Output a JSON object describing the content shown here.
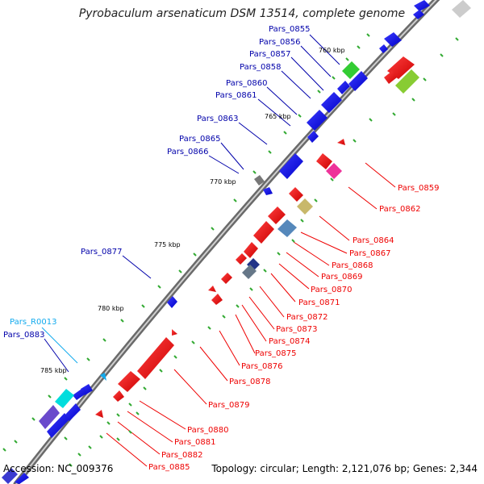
{
  "title": "Pyrobaculum arsenaticum DSM 13514, complete genome",
  "footer": {
    "accession": "Accession: NC_009376",
    "topology": "Topology: circular; Length: 2,121,076 bp; Genes: 2,344"
  },
  "colors": {
    "backbone": "#777777",
    "forward_label": "#0000aa",
    "reverse_label": "#ee0000",
    "rna_label": "#11aaee",
    "tick": "#33aa33",
    "forward_gene": "#0000ee",
    "reverse_gene": "#ee0000"
  },
  "ticks": [
    "760 kbp",
    "765 kbp",
    "770 kbp",
    "775 kbp",
    "780 kbp",
    "785 kbp"
  ],
  "forward_labels": [
    "Pars_0855",
    "Pars_0856",
    "Pars_0857",
    "Pars_0858",
    "Pars_0860",
    "Pars_0861",
    "Pars_0863",
    "Pars_0865",
    "Pars_0866",
    "Pars_0877",
    "Pars_R0013",
    "Pars_0883"
  ],
  "reverse_labels": [
    "Pars_0859",
    "Pars_0862",
    "Pars_0864",
    "Pars_0867",
    "Pars_0868",
    "Pars_0869",
    "Pars_0870",
    "Pars_0871",
    "Pars_0872",
    "Pars_0873",
    "Pars_0874",
    "Pars_0875",
    "Pars_0876",
    "Pars_0878",
    "Pars_0879",
    "Pars_0880",
    "Pars_0881",
    "Pars_0882",
    "Pars_0885"
  ]
}
